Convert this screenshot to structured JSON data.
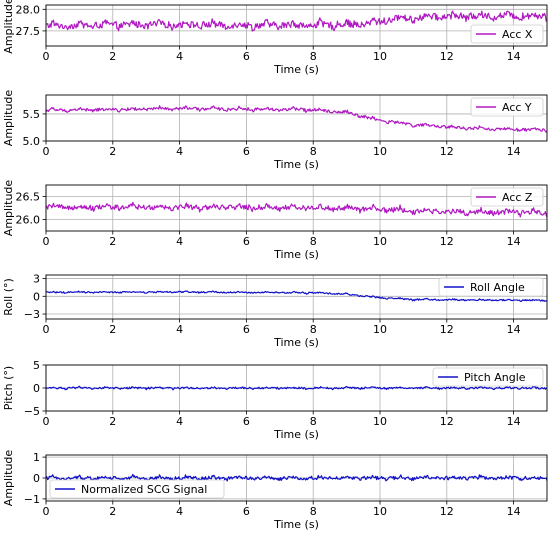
{
  "chart_data": [
    {
      "type": "line",
      "ylabel": "Amplitude",
      "xlabel": "Time (s)",
      "xlim": [
        0,
        15
      ],
      "ylim": [
        27.15,
        28.1
      ],
      "xticks": [
        0,
        2,
        4,
        6,
        8,
        10,
        12,
        14
      ],
      "yticks": [
        27.5,
        28.0
      ],
      "grid": true,
      "legend_position": "lower-right",
      "series": [
        {
          "name": "Acc X",
          "color": "#b019c2",
          "noise_amp": 0.14,
          "x": [
            0,
            2,
            4,
            6,
            8,
            9.6,
            10.4,
            12,
            14,
            15
          ],
          "y": [
            27.62,
            27.64,
            27.65,
            27.63,
            27.64,
            27.66,
            27.78,
            27.84,
            27.85,
            27.85
          ]
        }
      ]
    },
    {
      "type": "line",
      "ylabel": "Amplitude",
      "xlabel": "Time (s)",
      "xlim": [
        0,
        15
      ],
      "ylim": [
        5.0,
        5.85
      ],
      "xticks": [
        0,
        2,
        4,
        6,
        8,
        10,
        12,
        14
      ],
      "yticks": [
        5.0,
        5.5
      ],
      "grid": true,
      "legend_position": "top-right",
      "series": [
        {
          "name": "Acc Y",
          "color": "#b019c2",
          "noise_amp": 0.05,
          "x": [
            0,
            2,
            4,
            6,
            8,
            9,
            10,
            11,
            12,
            13,
            14,
            15
          ],
          "y": [
            5.57,
            5.58,
            5.6,
            5.59,
            5.58,
            5.53,
            5.38,
            5.3,
            5.26,
            5.23,
            5.21,
            5.2
          ]
        }
      ]
    },
    {
      "type": "line",
      "ylabel": "Amplitude",
      "xlabel": "Time (s)",
      "xlim": [
        0,
        15
      ],
      "ylim": [
        25.75,
        26.75
      ],
      "xticks": [
        0,
        2,
        4,
        6,
        8,
        10,
        12,
        14
      ],
      "yticks": [
        26.0,
        26.5
      ],
      "grid": true,
      "legend_position": "top-right",
      "series": [
        {
          "name": "Acc Z",
          "color": "#b019c2",
          "noise_amp": 0.1,
          "x": [
            0,
            4,
            8,
            10,
            12,
            15
          ],
          "y": [
            26.27,
            26.27,
            26.26,
            26.22,
            26.17,
            26.15
          ]
        }
      ]
    },
    {
      "type": "line",
      "ylabel": "Roll (°)",
      "xlabel": "Time (s)",
      "xlim": [
        0,
        15
      ],
      "ylim": [
        -3.2,
        3.0
      ],
      "xticks": [
        0,
        2,
        4,
        6,
        8,
        10,
        12,
        14
      ],
      "yticks": [
        -2.5,
        0.0,
        2.5
      ],
      "grid": true,
      "legend_position": "top-right",
      "series": [
        {
          "name": "Roll Angle",
          "color": "#1010c8",
          "noise_amp": 0.18,
          "x": [
            0,
            4,
            8,
            9,
            10,
            11,
            12,
            14,
            15
          ],
          "y": [
            0.55,
            0.6,
            0.5,
            0.3,
            -0.2,
            -0.45,
            -0.5,
            -0.55,
            -0.6
          ]
        }
      ]
    },
    {
      "type": "line",
      "ylabel": "Pitch (°)",
      "xlabel": "Time (s)",
      "xlim": [
        0,
        15
      ],
      "ylim": [
        -5,
        5
      ],
      "xticks": [
        0,
        2,
        4,
        6,
        8,
        10,
        12,
        14
      ],
      "yticks": [
        -5,
        0,
        5
      ],
      "grid": true,
      "legend_position": "top-right",
      "series": [
        {
          "name": "Pitch Angle",
          "color": "#1010c8",
          "noise_amp": 0.35,
          "x": [
            0,
            15
          ],
          "y": [
            0.0,
            0.0
          ]
        }
      ]
    },
    {
      "type": "line",
      "ylabel": "Amplitude",
      "xlabel": "Time (s)",
      "xlim": [
        0,
        15
      ],
      "ylim": [
        -1.1,
        1.1
      ],
      "xticks": [
        0,
        2,
        4,
        6,
        8,
        10,
        12,
        14
      ],
      "yticks": [
        -1,
        0,
        1
      ],
      "grid": true,
      "legend_position": "bottom-left",
      "series": [
        {
          "name": "Normalized SCG Signal",
          "color": "#1010c8",
          "noise_amp": 0.15,
          "x": [
            0,
            15
          ],
          "y": [
            0.0,
            0.0
          ]
        }
      ]
    }
  ]
}
